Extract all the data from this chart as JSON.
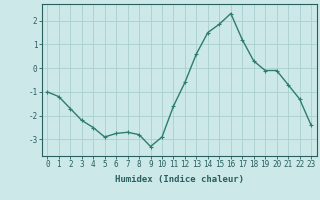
{
  "x": [
    0,
    1,
    2,
    3,
    4,
    5,
    6,
    7,
    8,
    9,
    10,
    11,
    12,
    13,
    14,
    15,
    16,
    17,
    18,
    19,
    20,
    21,
    22,
    23
  ],
  "y": [
    -1.0,
    -1.2,
    -1.7,
    -2.2,
    -2.5,
    -2.9,
    -2.75,
    -2.7,
    -2.8,
    -3.3,
    -2.9,
    -1.6,
    -0.6,
    0.6,
    1.5,
    1.85,
    2.3,
    1.2,
    0.3,
    -0.1,
    -0.1,
    -0.7,
    -1.3,
    -2.4
  ],
  "line_color": "#2d7d6e",
  "marker": "+",
  "marker_size": 3,
  "bg_color": "#cce8e8",
  "grid_color": "#aad0d0",
  "xlabel": "Humidex (Indice chaleur)",
  "ylim": [
    -3.7,
    2.7
  ],
  "xlim": [
    -0.5,
    23.5
  ],
  "yticks": [
    -3,
    -2,
    -1,
    0,
    1,
    2
  ],
  "xticks": [
    0,
    1,
    2,
    3,
    4,
    5,
    6,
    7,
    8,
    9,
    10,
    11,
    12,
    13,
    14,
    15,
    16,
    17,
    18,
    19,
    20,
    21,
    22,
    23
  ],
  "tick_label_color": "#2a5f5f",
  "axis_color": "#2a5f5f",
  "label_fontsize": 6.5,
  "tick_fontsize": 5.5,
  "linewidth": 1.0,
  "markeredgewidth": 0.8
}
